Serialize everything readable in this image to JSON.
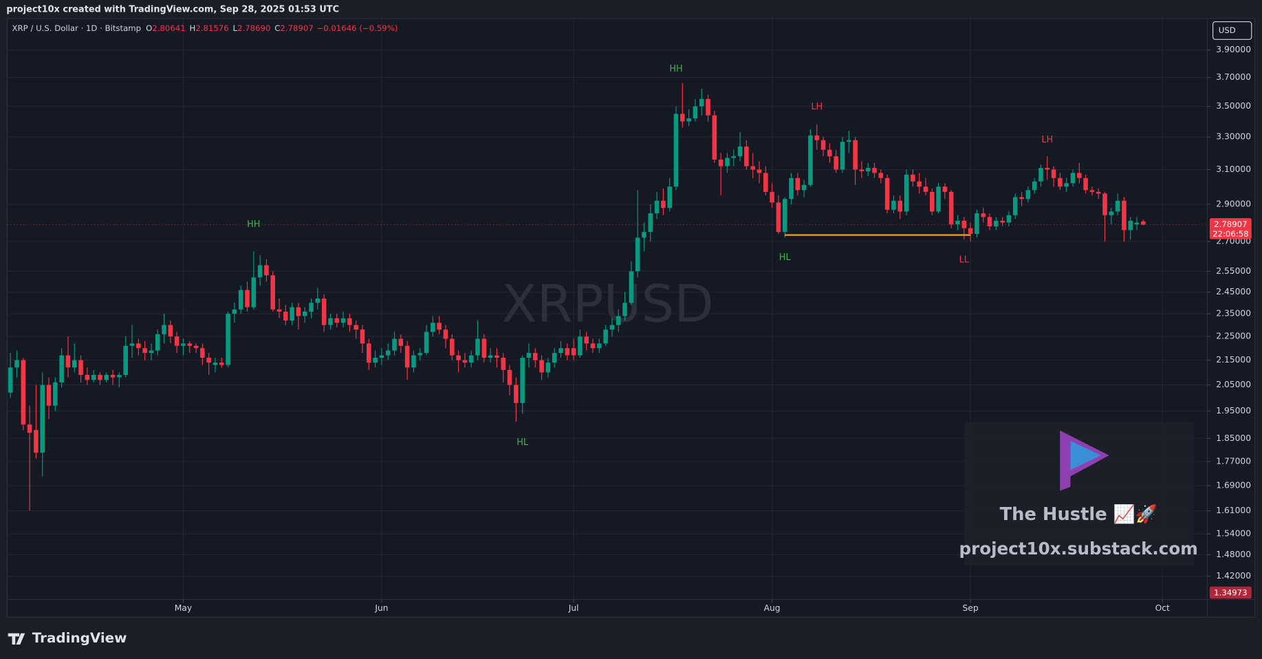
{
  "header": "project10x created with TradingView.com, Sep 28, 2025 01:53 UTC",
  "chart_data": {
    "type": "candlestick",
    "symbol": "XRP / U.S. Dollar · 1D · Bitstamp",
    "ohlc_legend": [
      {
        "key": "O",
        "value": "2.80641"
      },
      {
        "key": "H",
        "value": "2.81576"
      },
      {
        "key": "L",
        "value": "2.78690"
      },
      {
        "key": "C",
        "value": "2.78907"
      }
    ],
    "change": "−0.01646 (−0.59%)",
    "watermark": "XRPUSD",
    "currency": "USD",
    "log_scale": true,
    "grid": true,
    "up_color": "#089981",
    "down_color": "#f23645",
    "xlim": [
      -0.5,
      187
    ],
    "xticks": [
      {
        "value": 27,
        "label": "May"
      },
      {
        "value": 58,
        "label": "Jun"
      },
      {
        "value": 88,
        "label": "Jul"
      },
      {
        "value": 119,
        "label": "Aug"
      },
      {
        "value": 150,
        "label": "Sep"
      },
      {
        "value": 180,
        "label": "Oct"
      }
    ],
    "ylim": [
      1.358,
      4.143
    ],
    "yticks": [
      {
        "value": 3.9,
        "label": "3.90000"
      },
      {
        "value": 3.7,
        "label": "3.70000"
      },
      {
        "value": 3.5,
        "label": "3.50000"
      },
      {
        "value": 3.3,
        "label": "3.30000"
      },
      {
        "value": 3.1,
        "label": "3.10000"
      },
      {
        "value": 2.9,
        "label": "2.90000"
      },
      {
        "value": 2.7,
        "label": "2.70000"
      },
      {
        "value": 2.55,
        "label": "2.55000"
      },
      {
        "value": 2.45,
        "label": "2.45000"
      },
      {
        "value": 2.35,
        "label": "2.35000"
      },
      {
        "value": 2.25,
        "label": "2.25000"
      },
      {
        "value": 2.15,
        "label": "2.15000"
      },
      {
        "value": 2.05,
        "label": "2.05000"
      },
      {
        "value": 1.95,
        "label": "1.95000"
      },
      {
        "value": 1.85,
        "label": "1.85000"
      },
      {
        "value": 1.77,
        "label": "1.77000"
      },
      {
        "value": 1.69,
        "label": "1.69000"
      },
      {
        "value": 1.61,
        "label": "1.61000"
      },
      {
        "value": 1.54,
        "label": "1.54000"
      },
      {
        "value": 1.48,
        "label": "1.48000"
      },
      {
        "value": 1.42,
        "label": "1.42000"
      }
    ],
    "x": [
      0,
      1,
      2,
      3,
      4,
      5,
      6,
      7,
      8,
      9,
      10,
      11,
      12,
      13,
      14,
      15,
      16,
      17,
      18,
      19,
      20,
      21,
      22,
      23,
      24,
      25,
      26,
      27,
      28,
      29,
      30,
      31,
      32,
      33,
      34,
      35,
      36,
      37,
      38,
      39,
      40,
      41,
      42,
      43,
      44,
      45,
      46,
      47,
      48,
      49,
      50,
      51,
      52,
      53,
      54,
      55,
      56,
      57,
      58,
      59,
      60,
      61,
      62,
      63,
      64,
      65,
      66,
      67,
      68,
      69,
      70,
      71,
      72,
      73,
      74,
      75,
      76,
      77,
      78,
      79,
      80,
      81,
      82,
      83,
      84,
      85,
      86,
      87,
      88,
      89,
      90,
      91,
      92,
      93,
      94,
      95,
      96,
      97,
      98,
      99,
      100,
      101,
      102,
      103,
      104,
      105,
      106,
      107,
      108,
      109,
      110,
      111,
      112,
      113,
      114,
      115,
      116,
      117,
      118,
      119,
      120,
      121,
      122,
      123,
      124,
      125,
      126,
      127,
      128,
      129,
      130,
      131,
      132,
      133,
      134,
      135,
      136,
      137,
      138,
      139,
      140,
      141,
      142,
      143,
      144,
      145,
      146,
      147,
      148,
      149,
      150,
      151,
      152,
      153,
      154,
      155,
      156,
      157,
      158,
      159,
      160,
      161,
      162,
      163,
      164,
      165,
      166,
      167,
      168,
      169,
      170,
      171,
      172,
      173,
      174,
      175,
      176,
      177
    ],
    "ohlc": [
      [
        2.02,
        2.18,
        2.0,
        2.12
      ],
      [
        2.12,
        2.19,
        2.08,
        2.15
      ],
      [
        2.15,
        2.16,
        1.88,
        1.9
      ],
      [
        1.9,
        1.97,
        1.61,
        1.87
      ],
      [
        1.88,
        2.05,
        1.78,
        1.8
      ],
      [
        1.8,
        2.1,
        1.72,
        2.05
      ],
      [
        2.05,
        2.08,
        1.92,
        1.97
      ],
      [
        1.97,
        2.08,
        1.95,
        2.06
      ],
      [
        2.06,
        2.2,
        2.04,
        2.17
      ],
      [
        2.17,
        2.25,
        2.08,
        2.12
      ],
      [
        2.12,
        2.22,
        2.1,
        2.15
      ],
      [
        2.15,
        2.17,
        2.06,
        2.09
      ],
      [
        2.09,
        2.12,
        2.05,
        2.07
      ],
      [
        2.07,
        2.11,
        2.06,
        2.09
      ],
      [
        2.09,
        2.1,
        2.05,
        2.07
      ],
      [
        2.07,
        2.1,
        2.06,
        2.09
      ],
      [
        2.09,
        2.11,
        2.05,
        2.08
      ],
      [
        2.08,
        2.1,
        2.04,
        2.09
      ],
      [
        2.09,
        2.25,
        2.08,
        2.21
      ],
      [
        2.21,
        2.3,
        2.16,
        2.22
      ],
      [
        2.22,
        2.24,
        2.17,
        2.2
      ],
      [
        2.2,
        2.23,
        2.15,
        2.18
      ],
      [
        2.18,
        2.22,
        2.15,
        2.19
      ],
      [
        2.19,
        2.28,
        2.17,
        2.26
      ],
      [
        2.26,
        2.35,
        2.22,
        2.3
      ],
      [
        2.3,
        2.32,
        2.22,
        2.25
      ],
      [
        2.25,
        2.27,
        2.18,
        2.21
      ],
      [
        2.21,
        2.24,
        2.17,
        2.22
      ],
      [
        2.22,
        2.23,
        2.18,
        2.21
      ],
      [
        2.21,
        2.22,
        2.18,
        2.2
      ],
      [
        2.2,
        2.22,
        2.13,
        2.16
      ],
      [
        2.16,
        2.18,
        2.09,
        2.14
      ],
      [
        2.13,
        2.16,
        2.1,
        2.14
      ],
      [
        2.14,
        2.16,
        2.12,
        2.13
      ],
      [
        2.13,
        2.36,
        2.12,
        2.35
      ],
      [
        2.35,
        2.4,
        2.31,
        2.37
      ],
      [
        2.37,
        2.48,
        2.35,
        2.46
      ],
      [
        2.46,
        2.5,
        2.36,
        2.38
      ],
      [
        2.38,
        2.65,
        2.37,
        2.52
      ],
      [
        2.52,
        2.63,
        2.48,
        2.58
      ],
      [
        2.58,
        2.61,
        2.5,
        2.53
      ],
      [
        2.53,
        2.55,
        2.36,
        2.37
      ],
      [
        2.37,
        2.42,
        2.33,
        2.36
      ],
      [
        2.36,
        2.39,
        2.3,
        2.32
      ],
      [
        2.32,
        2.4,
        2.3,
        2.38
      ],
      [
        2.38,
        2.4,
        2.28,
        2.34
      ],
      [
        2.34,
        2.38,
        2.31,
        2.36
      ],
      [
        2.36,
        2.42,
        2.33,
        2.4
      ],
      [
        2.4,
        2.47,
        2.37,
        2.42
      ],
      [
        2.42,
        2.44,
        2.27,
        2.3
      ],
      [
        2.3,
        2.35,
        2.28,
        2.33
      ],
      [
        2.33,
        2.35,
        2.29,
        2.31
      ],
      [
        2.31,
        2.36,
        2.29,
        2.33
      ],
      [
        2.33,
        2.35,
        2.27,
        2.3
      ],
      [
        2.3,
        2.32,
        2.24,
        2.28
      ],
      [
        2.28,
        2.3,
        2.18,
        2.22
      ],
      [
        2.22,
        2.24,
        2.11,
        2.14
      ],
      [
        2.14,
        2.19,
        2.12,
        2.16
      ],
      [
        2.16,
        2.2,
        2.13,
        2.17
      ],
      [
        2.17,
        2.22,
        2.15,
        2.19
      ],
      [
        2.19,
        2.27,
        2.17,
        2.24
      ],
      [
        2.24,
        2.26,
        2.18,
        2.21
      ],
      [
        2.21,
        2.23,
        2.07,
        2.12
      ],
      [
        2.12,
        2.19,
        2.1,
        2.17
      ],
      [
        2.17,
        2.2,
        2.15,
        2.18
      ],
      [
        2.18,
        2.3,
        2.17,
        2.27
      ],
      [
        2.27,
        2.34,
        2.25,
        2.31
      ],
      [
        2.31,
        2.34,
        2.26,
        2.28
      ],
      [
        2.28,
        2.3,
        2.2,
        2.24
      ],
      [
        2.24,
        2.26,
        2.15,
        2.17
      ],
      [
        2.17,
        2.19,
        2.1,
        2.15
      ],
      [
        2.15,
        2.18,
        2.12,
        2.14
      ],
      [
        2.14,
        2.19,
        2.12,
        2.17
      ],
      [
        2.17,
        2.32,
        2.15,
        2.24
      ],
      [
        2.24,
        2.26,
        2.14,
        2.16
      ],
      [
        2.16,
        2.2,
        2.14,
        2.17
      ],
      [
        2.17,
        2.2,
        2.12,
        2.16
      ],
      [
        2.16,
        2.18,
        2.06,
        2.11
      ],
      [
        2.11,
        2.13,
        2.01,
        2.05
      ],
      [
        2.05,
        2.08,
        1.91,
        1.98
      ],
      [
        1.98,
        2.17,
        1.94,
        2.16
      ],
      [
        2.16,
        2.22,
        2.12,
        2.18
      ],
      [
        2.18,
        2.2,
        2.12,
        2.15
      ],
      [
        2.15,
        2.17,
        2.07,
        2.1
      ],
      [
        2.1,
        2.16,
        2.08,
        2.14
      ],
      [
        2.14,
        2.2,
        2.12,
        2.18
      ],
      [
        2.18,
        2.23,
        2.16,
        2.2
      ],
      [
        2.2,
        2.22,
        2.15,
        2.17
      ],
      [
        2.2,
        2.24,
        2.15,
        2.17
      ],
      [
        2.17,
        2.28,
        2.16,
        2.25
      ],
      [
        2.25,
        2.27,
        2.19,
        2.22
      ],
      [
        2.22,
        2.24,
        2.18,
        2.2
      ],
      [
        2.2,
        2.24,
        2.18,
        2.22
      ],
      [
        2.22,
        2.3,
        2.21,
        2.28
      ],
      [
        2.28,
        2.33,
        2.25,
        2.3
      ],
      [
        2.3,
        2.37,
        2.27,
        2.34
      ],
      [
        2.34,
        2.45,
        2.32,
        2.4
      ],
      [
        2.4,
        2.6,
        2.39,
        2.55
      ],
      [
        2.55,
        2.98,
        2.52,
        2.72
      ],
      [
        2.72,
        2.8,
        2.65,
        2.75
      ],
      [
        2.75,
        2.9,
        2.7,
        2.85
      ],
      [
        2.85,
        2.97,
        2.82,
        2.92
      ],
      [
        2.92,
        2.99,
        2.84,
        2.88
      ],
      [
        2.88,
        3.05,
        2.86,
        3.0
      ],
      [
        3.0,
        3.5,
        2.98,
        3.45
      ],
      [
        3.45,
        3.66,
        3.36,
        3.4
      ],
      [
        3.4,
        3.48,
        3.37,
        3.42
      ],
      [
        3.42,
        3.55,
        3.4,
        3.5
      ],
      [
        3.5,
        3.62,
        3.44,
        3.55
      ],
      [
        3.55,
        3.58,
        3.4,
        3.44
      ],
      [
        3.44,
        3.47,
        3.14,
        3.16
      ],
      [
        3.16,
        3.2,
        2.95,
        3.12
      ],
      [
        3.12,
        3.2,
        3.08,
        3.17
      ],
      [
        3.17,
        3.22,
        3.12,
        3.18
      ],
      [
        3.18,
        3.33,
        3.15,
        3.24
      ],
      [
        3.24,
        3.28,
        3.1,
        3.12
      ],
      [
        3.12,
        3.2,
        3.05,
        3.1
      ],
      [
        3.1,
        3.15,
        3.02,
        3.08
      ],
      [
        3.08,
        3.12,
        2.95,
        2.97
      ],
      [
        2.97,
        3.02,
        2.88,
        2.91
      ],
      [
        2.91,
        2.95,
        2.74,
        2.75
      ],
      [
        2.75,
        2.94,
        2.72,
        2.93
      ],
      [
        2.93,
        3.08,
        2.9,
        3.05
      ],
      [
        3.05,
        3.08,
        2.95,
        2.98
      ],
      [
        2.98,
        3.04,
        2.94,
        3.01
      ],
      [
        3.01,
        3.35,
        3.0,
        3.31
      ],
      [
        3.31,
        3.38,
        3.22,
        3.28
      ],
      [
        3.28,
        3.3,
        3.18,
        3.22
      ],
      [
        3.22,
        3.26,
        3.14,
        3.18
      ],
      [
        3.18,
        3.22,
        3.08,
        3.1
      ],
      [
        3.1,
        3.3,
        3.08,
        3.27
      ],
      [
        3.27,
        3.34,
        3.2,
        3.28
      ],
      [
        3.28,
        3.3,
        3.01,
        3.1
      ],
      [
        3.1,
        3.15,
        3.05,
        3.09
      ],
      [
        3.09,
        3.14,
        3.06,
        3.11
      ],
      [
        3.11,
        3.14,
        3.05,
        3.08
      ],
      [
        3.08,
        3.1,
        3.02,
        3.05
      ],
      [
        3.05,
        3.07,
        2.85,
        2.87
      ],
      [
        2.87,
        2.95,
        2.85,
        2.92
      ],
      [
        2.92,
        2.95,
        2.82,
        2.86
      ],
      [
        2.86,
        3.1,
        2.84,
        3.07
      ],
      [
        3.07,
        3.1,
        3.0,
        3.03
      ],
      [
        3.03,
        3.08,
        2.96,
        3.0
      ],
      [
        3.0,
        3.05,
        2.95,
        2.97
      ],
      [
        2.97,
        2.99,
        2.84,
        2.86
      ],
      [
        2.86,
        3.02,
        2.85,
        3.0
      ],
      [
        3.0,
        3.02,
        2.93,
        2.97
      ],
      [
        2.97,
        2.98,
        2.77,
        2.79
      ],
      [
        2.79,
        2.84,
        2.76,
        2.81
      ],
      [
        2.81,
        2.83,
        2.71,
        2.77
      ],
      [
        2.77,
        2.8,
        2.7,
        2.74
      ],
      [
        2.74,
        2.87,
        2.72,
        2.85
      ],
      [
        2.85,
        2.88,
        2.8,
        2.83
      ],
      [
        2.83,
        2.85,
        2.76,
        2.78
      ],
      [
        2.78,
        2.83,
        2.76,
        2.81
      ],
      [
        2.81,
        2.83,
        2.78,
        2.8
      ],
      [
        2.8,
        2.86,
        2.78,
        2.84
      ],
      [
        2.84,
        2.96,
        2.82,
        2.94
      ],
      [
        2.94,
        2.97,
        2.89,
        2.93
      ],
      [
        2.93,
        3.0,
        2.91,
        2.98
      ],
      [
        2.98,
        3.05,
        2.96,
        3.03
      ],
      [
        3.03,
        3.13,
        3.0,
        3.11
      ],
      [
        3.11,
        3.18,
        3.04,
        3.1
      ],
      [
        3.1,
        3.12,
        3.0,
        3.05
      ],
      [
        3.05,
        3.08,
        2.98,
        3.0
      ],
      [
        3.0,
        3.05,
        2.97,
        3.02
      ],
      [
        3.02,
        3.1,
        3.0,
        3.08
      ],
      [
        3.08,
        3.14,
        3.02,
        3.05
      ],
      [
        3.05,
        3.07,
        2.96,
        2.98
      ],
      [
        2.98,
        3.0,
        2.95,
        2.97
      ],
      [
        2.97,
        2.99,
        2.93,
        2.96
      ],
      [
        2.96,
        2.97,
        2.7,
        2.84
      ],
      [
        2.84,
        2.88,
        2.79,
        2.86
      ],
      [
        2.86,
        2.96,
        2.84,
        2.92
      ],
      [
        2.92,
        2.94,
        2.7,
        2.76
      ],
      [
        2.76,
        2.83,
        2.71,
        2.81
      ],
      [
        2.79,
        2.83,
        2.76,
        2.8
      ],
      [
        2.80641,
        2.81576,
        2.7869,
        2.78907
      ]
    ],
    "trendline": {
      "x": [
        121,
        150
      ],
      "y": 2.734,
      "color": "#f7a21b"
    },
    "annotations": [
      {
        "text": "HH",
        "x": 38,
        "y": 2.789,
        "color": "#4caf50"
      },
      {
        "text": "HH",
        "x": 104,
        "y": 3.758,
        "color": "#4caf50"
      },
      {
        "text": "HL",
        "x": 80,
        "y": 1.835,
        "color": "#4caf50"
      },
      {
        "text": "HL",
        "x": 121,
        "y": 2.618,
        "color": "#4caf50"
      },
      {
        "text": "LH",
        "x": 126,
        "y": 3.495,
        "color": "#f23645"
      },
      {
        "text": "LH",
        "x": 162,
        "y": 3.281,
        "color": "#f23645"
      },
      {
        "text": "LL",
        "x": 149,
        "y": 2.606,
        "color": "#f23645"
      }
    ],
    "last_price": {
      "label": "2.78907",
      "countdown": "22:06:58"
    },
    "low_label": "1.34973"
  },
  "promo": {
    "title": "The Hustle 📈🚀",
    "url": "project10x.substack.com"
  },
  "footer": "TradingView"
}
